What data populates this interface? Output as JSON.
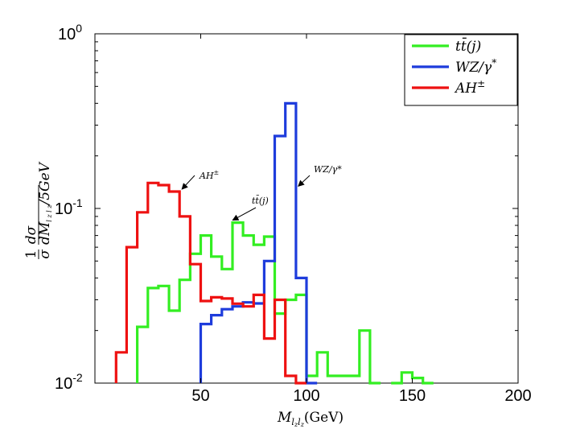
{
  "chart_data": {
    "type": "line",
    "style": "step-histogram",
    "x_scale": "linear",
    "y_scale": "log",
    "xlim": [
      0,
      200
    ],
    "ylim": [
      0.01,
      1
    ],
    "bin_width": 5,
    "xticks": [
      {
        "value": 50,
        "label": "50"
      },
      {
        "value": 100,
        "label": "100"
      },
      {
        "value": 150,
        "label": "150"
      },
      {
        "value": 200,
        "label": "200"
      }
    ],
    "yticks": [
      {
        "value": 1,
        "base": "10",
        "exp": "0"
      },
      {
        "value": 0.1,
        "base": "10",
        "exp": "-1"
      },
      {
        "value": 0.01,
        "base": "10",
        "exp": "-2"
      }
    ],
    "xlabel_math": "M",
    "xlabel_sub": "l",
    "xlabel_subsub1": "z",
    "xlabel_sub2": "l",
    "xlabel_subsub2": "z",
    "xlabel_unit": "(GeV)",
    "ylabel": {
      "frac1_num": "1",
      "frac1_den": "σ",
      "frac2_num": "dσ",
      "frac2_den": "dM",
      "den_sub": "l z l z",
      "den_suffix": "/5GeV"
    },
    "series": [
      {
        "name": "tt̄(j)",
        "color": "#33ee22",
        "bins": [
          [
            20,
            25,
            0.021
          ],
          [
            25,
            30,
            0.035
          ],
          [
            30,
            35,
            0.036
          ],
          [
            35,
            40,
            0.026
          ],
          [
            40,
            45,
            0.039
          ],
          [
            45,
            50,
            0.055
          ],
          [
            50,
            55,
            0.07
          ],
          [
            55,
            60,
            0.053
          ],
          [
            60,
            65,
            0.045
          ],
          [
            65,
            70,
            0.083
          ],
          [
            70,
            75,
            0.07
          ],
          [
            75,
            80,
            0.062
          ],
          [
            80,
            85,
            0.069
          ],
          [
            85,
            90,
            0.025
          ],
          [
            90,
            95,
            0.03
          ],
          [
            95,
            100,
            0.032
          ],
          [
            100,
            105,
            0.011
          ],
          [
            105,
            110,
            0.015
          ],
          [
            110,
            115,
            0.011
          ],
          [
            115,
            120,
            0.011
          ],
          [
            120,
            125,
            0.011
          ],
          [
            125,
            130,
            0.02
          ],
          [
            130,
            135,
            0.0085
          ],
          [
            140,
            145,
            0.0085
          ],
          [
            145,
            150,
            0.0115
          ],
          [
            150,
            155,
            0.0107
          ],
          [
            155,
            160,
            0.0085
          ]
        ]
      },
      {
        "name": "WZ/γ*",
        "color": "#1e3cdc",
        "bins": [
          [
            50,
            55,
            0.0218
          ],
          [
            55,
            60,
            0.0245
          ],
          [
            60,
            65,
            0.0265
          ],
          [
            65,
            70,
            0.0275
          ],
          [
            70,
            75,
            0.029
          ],
          [
            75,
            80,
            0.0286
          ],
          [
            80,
            85,
            0.05
          ],
          [
            85,
            90,
            0.26
          ],
          [
            90,
            95,
            0.4
          ],
          [
            95,
            100,
            0.04
          ],
          [
            100,
            105,
            0.01
          ]
        ]
      },
      {
        "name": "AH±",
        "color": "#ee1111",
        "bins": [
          [
            10,
            15,
            0.015
          ],
          [
            15,
            20,
            0.06
          ],
          [
            20,
            25,
            0.095
          ],
          [
            25,
            30,
            0.14
          ],
          [
            30,
            35,
            0.136
          ],
          [
            35,
            40,
            0.125
          ],
          [
            40,
            45,
            0.09
          ],
          [
            45,
            50,
            0.048
          ],
          [
            50,
            55,
            0.0295
          ],
          [
            55,
            60,
            0.031
          ],
          [
            60,
            65,
            0.0305
          ],
          [
            65,
            70,
            0.0285
          ],
          [
            70,
            75,
            0.0275
          ],
          [
            75,
            80,
            0.032
          ],
          [
            80,
            85,
            0.018
          ],
          [
            85,
            90,
            0.03
          ],
          [
            90,
            95,
            0.011
          ],
          [
            95,
            100,
            0.01
          ]
        ]
      }
    ],
    "legend": {
      "position": "top-right",
      "items": [
        {
          "main": "tt̄(j)",
          "color": "#33ee22"
        },
        {
          "main": "WZ/γ",
          "sup": "*",
          "color": "#1e3cdc"
        },
        {
          "main": "AH",
          "sup": "±",
          "color": "#ee1111"
        }
      ]
    },
    "annotations": [
      {
        "label": "AH",
        "sup": "±",
        "target": [
          40,
          0.125
        ]
      },
      {
        "label": "tt̄(j)",
        "target": [
          64,
          0.083
        ]
      },
      {
        "label": "WZ/γ*",
        "target": [
          95,
          0.13
        ]
      }
    ]
  }
}
